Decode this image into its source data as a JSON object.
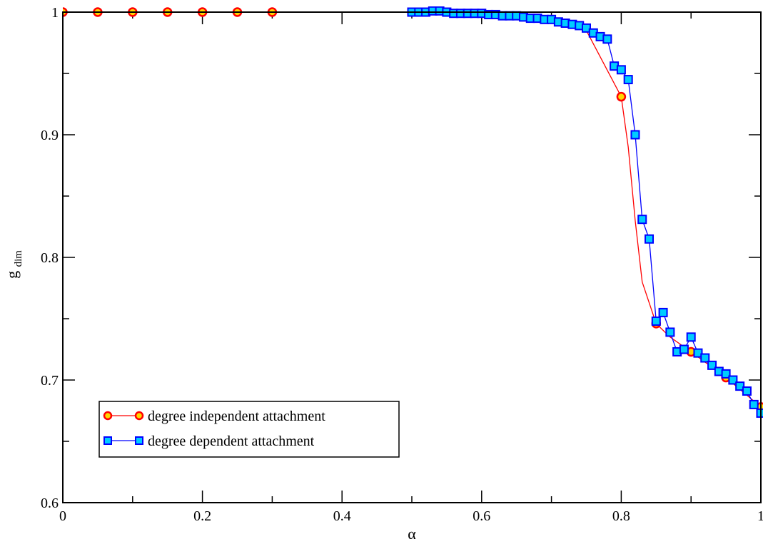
{
  "chart_data": {
    "type": "line",
    "xlabel": "α",
    "ylabel": "g",
    "ylabel_sub": "dim",
    "xlim": [
      0,
      1
    ],
    "ylim": [
      0.6,
      1
    ],
    "x_ticks": [
      0,
      0.2,
      0.4,
      0.6,
      0.8,
      1
    ],
    "x_tick_labels": [
      "0",
      "0.2",
      "0.4",
      "0.6",
      "0.8",
      "1"
    ],
    "y_ticks": [
      0.6,
      0.7,
      0.8,
      0.9,
      1
    ],
    "y_tick_labels": [
      "0.6",
      "0.7",
      "0.8",
      "0.9",
      "1"
    ],
    "x_minor_step": 0.1,
    "y_minor_step": 0.05,
    "grid": false,
    "legend_position": "bottom-left",
    "series": [
      {
        "name": "degree independent attachment",
        "line_color": "#ff0000",
        "marker": "circle",
        "marker_fill": "#ffd700",
        "marker_edge": "#ff0000",
        "points": [
          [
            0.0,
            1.0
          ],
          [
            0.05,
            1.0
          ],
          [
            0.1,
            1.0
          ],
          [
            0.15,
            1.0
          ],
          [
            0.2,
            1.0
          ],
          [
            0.25,
            1.0
          ],
          [
            0.3,
            1.0
          ],
          [
            0.35,
            1.0
          ],
          [
            0.4,
            1.0
          ],
          [
            0.45,
            1.0
          ],
          [
            0.5,
            1.0
          ],
          [
            0.55,
            0.999
          ],
          [
            0.6,
            0.999
          ],
          [
            0.65,
            0.997
          ],
          [
            0.7,
            0.995
          ],
          [
            0.75,
            0.985
          ],
          [
            0.8,
            0.931
          ],
          [
            0.81,
            0.89
          ],
          [
            0.82,
            0.83
          ],
          [
            0.83,
            0.78
          ],
          [
            0.85,
            0.746
          ],
          [
            0.87,
            0.735
          ],
          [
            0.9,
            0.723
          ],
          [
            0.95,
            0.702
          ],
          [
            1.0,
            0.678
          ]
        ],
        "marker_points": [
          [
            0.0,
            1.0
          ],
          [
            0.05,
            1.0
          ],
          [
            0.1,
            1.0
          ],
          [
            0.15,
            1.0
          ],
          [
            0.2,
            1.0
          ],
          [
            0.25,
            1.0
          ],
          [
            0.3,
            1.0
          ],
          [
            0.8,
            0.931
          ],
          [
            0.85,
            0.746
          ],
          [
            0.9,
            0.723
          ],
          [
            0.95,
            0.702
          ],
          [
            1.0,
            0.678
          ]
        ]
      },
      {
        "name": "degree dependent attachment",
        "line_color": "#0000ff",
        "marker": "square",
        "marker_fill": "#00ccff",
        "marker_edge": "#0000ff",
        "points": [
          [
            0.5,
            1.0
          ],
          [
            0.51,
            1.0
          ],
          [
            0.52,
            1.0
          ],
          [
            0.53,
            1.001
          ],
          [
            0.54,
            1.001
          ],
          [
            0.55,
            1.0
          ],
          [
            0.56,
            0.999
          ],
          [
            0.57,
            0.999
          ],
          [
            0.58,
            0.999
          ],
          [
            0.59,
            0.999
          ],
          [
            0.6,
            0.999
          ],
          [
            0.61,
            0.998
          ],
          [
            0.62,
            0.998
          ],
          [
            0.63,
            0.997
          ],
          [
            0.64,
            0.997
          ],
          [
            0.65,
            0.997
          ],
          [
            0.66,
            0.996
          ],
          [
            0.67,
            0.995
          ],
          [
            0.68,
            0.995
          ],
          [
            0.69,
            0.994
          ],
          [
            0.7,
            0.994
          ],
          [
            0.71,
            0.992
          ],
          [
            0.72,
            0.991
          ],
          [
            0.73,
            0.99
          ],
          [
            0.74,
            0.989
          ],
          [
            0.75,
            0.987
          ],
          [
            0.76,
            0.983
          ],
          [
            0.77,
            0.98
          ],
          [
            0.78,
            0.978
          ],
          [
            0.79,
            0.956
          ],
          [
            0.8,
            0.953
          ],
          [
            0.81,
            0.945
          ],
          [
            0.82,
            0.9
          ],
          [
            0.83,
            0.831
          ],
          [
            0.84,
            0.815
          ],
          [
            0.85,
            0.748
          ],
          [
            0.86,
            0.755
          ],
          [
            0.87,
            0.739
          ],
          [
            0.88,
            0.723
          ],
          [
            0.89,
            0.725
          ],
          [
            0.9,
            0.735
          ],
          [
            0.91,
            0.722
          ],
          [
            0.92,
            0.718
          ],
          [
            0.93,
            0.712
          ],
          [
            0.94,
            0.707
          ],
          [
            0.95,
            0.705
          ],
          [
            0.96,
            0.7
          ],
          [
            0.97,
            0.695
          ],
          [
            0.98,
            0.691
          ],
          [
            0.99,
            0.68
          ],
          [
            1.0,
            0.673
          ]
        ]
      }
    ]
  }
}
